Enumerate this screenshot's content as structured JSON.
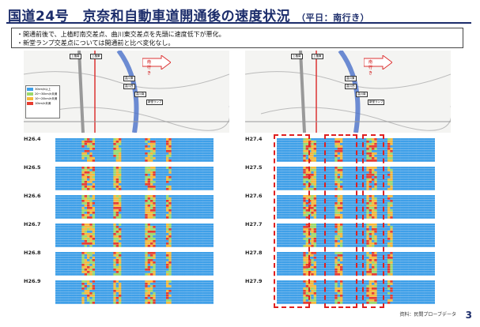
{
  "header": {
    "title": "国道24号　京奈和自動車道開通後の速度状況",
    "subtitle": "（平日：南行き）"
  },
  "notes": [
    "・開通前後で、上植町南交差点、曲川東交差点を先頭に速度低下が悪化。",
    "・新堂ランプ交差点については開通前と比べ変化なし。"
  ],
  "map": {
    "direction_label": "南行き",
    "station_labels": [
      "上植南",
      "上植東",
      "曲川東",
      "曲川西",
      "曲川南",
      "新堂ランプ"
    ],
    "legend_rows": [
      {
        "label": "30km/h以上",
        "color": "#3fa0e8"
      },
      {
        "label": "20〜30km/h未満",
        "color": "#9bd96a"
      },
      {
        "label": "10〜20km/h未満",
        "color": "#f5b93a"
      },
      {
        "label": "10km/h未満",
        "color": "#e63c2f"
      }
    ]
  },
  "left_panel": {
    "blocks": [
      "H26.4",
      "H26.5",
      "H26.6",
      "H26.7",
      "H26.8",
      "H26.9"
    ]
  },
  "right_panel": {
    "blocks": [
      "H27.4",
      "H27.5",
      "H27.6",
      "H27.7",
      "H27.8",
      "H27.9"
    ]
  },
  "colors": {
    "fast": "#3fa0e8",
    "mid": "#9bd96a",
    "slow": "#f5b93a",
    "jam": "#e63c2f",
    "header": "#1c2d6b"
  },
  "footer": {
    "source": "資料：民間プローブデータ",
    "page_number": "3"
  }
}
